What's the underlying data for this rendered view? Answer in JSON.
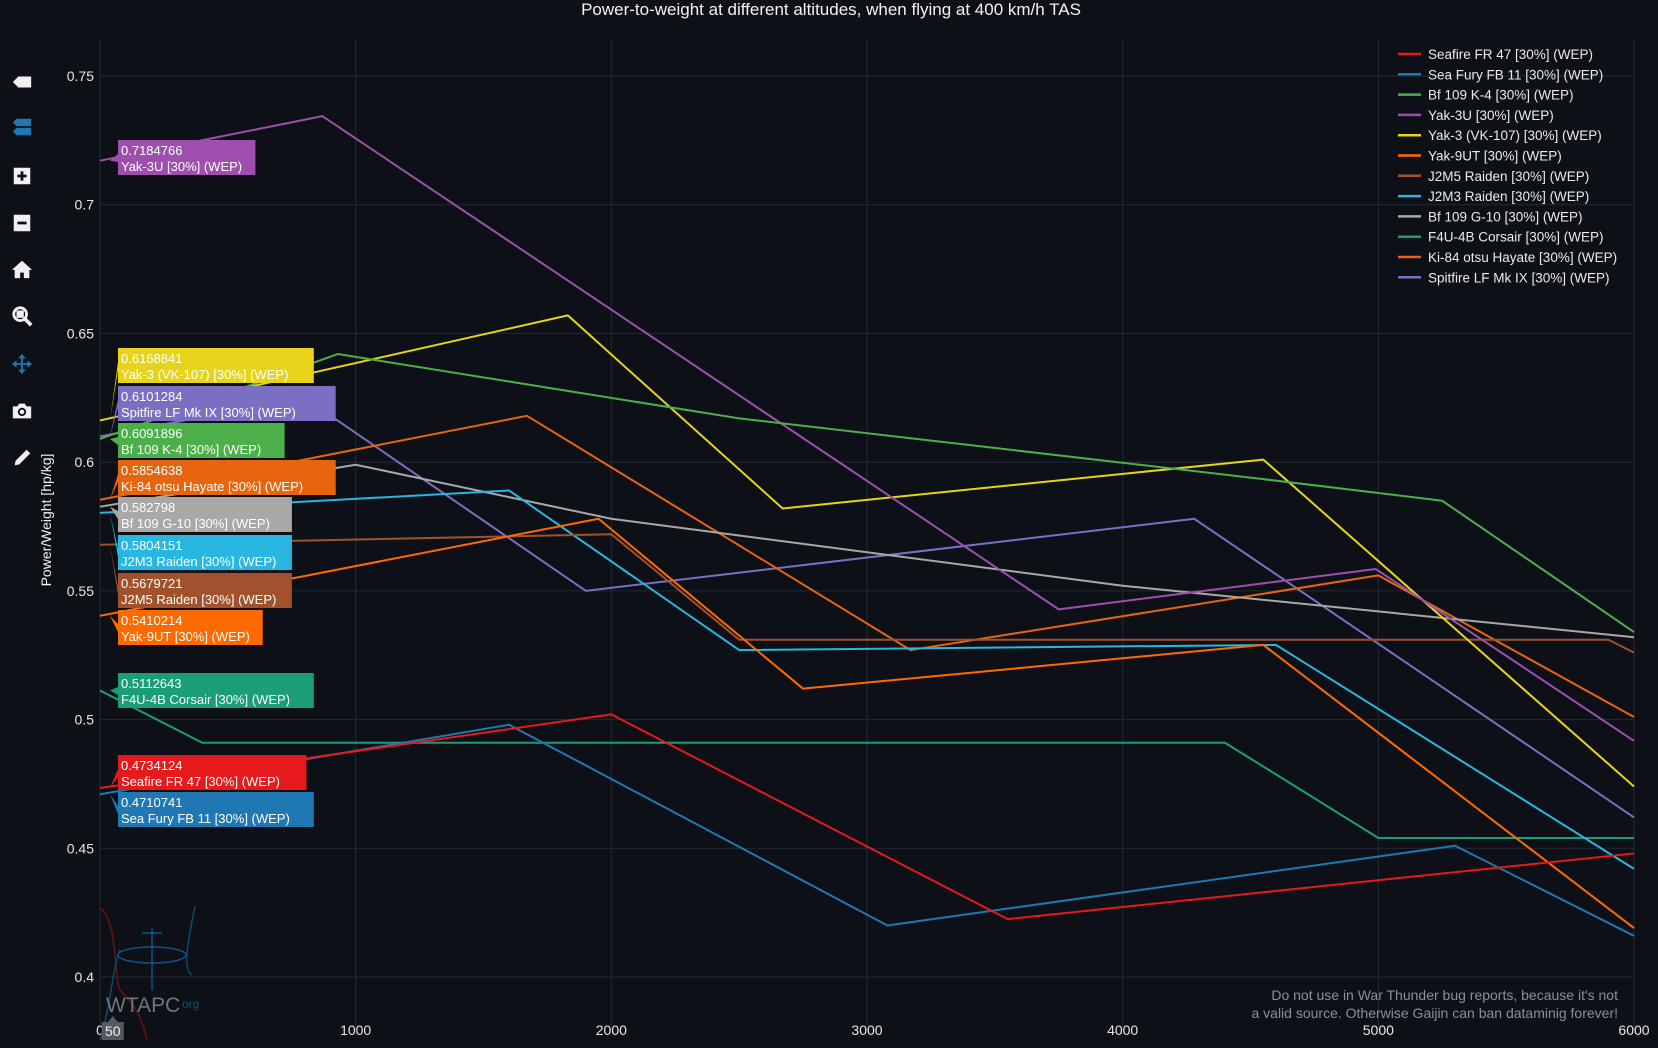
{
  "toolbar": {
    "items": [
      {
        "name": "show-closest-data-button",
        "icon": "tag-icon"
      },
      {
        "name": "compare-data-button",
        "icon": "compare-icon"
      },
      {
        "name": "zoom-in-button",
        "icon": "zoom-in-icon"
      },
      {
        "name": "zoom-out-button",
        "icon": "zoom-out-icon"
      },
      {
        "name": "reset-axes-button",
        "icon": "home-icon"
      },
      {
        "name": "zoom-button",
        "icon": "magnifier-icon"
      },
      {
        "name": "pan-button",
        "icon": "pan-arrows-icon"
      },
      {
        "name": "download-png-button",
        "icon": "camera-icon"
      },
      {
        "name": "draw-button",
        "icon": "pencil-icon"
      }
    ]
  },
  "watermark": {
    "logo_text": "WTAPC",
    "logo_suffix": "org",
    "notice_line1": "Do not use in War Thunder bug reports, because it's not",
    "notice_line2": "a valid source. Otherwise Gaijin can ban dataminig forever!"
  },
  "chart_data": {
    "type": "line",
    "title": "Power-to-weight at different altitudes, when flying at 400 km/h TAS",
    "xlabel": "",
    "ylabel": "Power/Weight [hp/kg]",
    "xlim": [
      0,
      6000
    ],
    "ylim": [
      0.39,
      0.765
    ],
    "xticks": [
      0,
      1000,
      2000,
      3000,
      4000,
      5000,
      6000
    ],
    "xtick_labels": [
      "0",
      "1000",
      "2000",
      "3000",
      "4000",
      "5000",
      "6000"
    ],
    "yticks": [
      0.4,
      0.45,
      0.5,
      0.55,
      0.6,
      0.65,
      0.7,
      0.75
    ],
    "ytick_labels": [
      "0.4",
      "0.45",
      "0.5",
      "0.55",
      "0.6",
      "0.65",
      "0.7",
      "0.75"
    ],
    "grid": true,
    "legend": "top-right",
    "hover": {
      "x": 50,
      "x_label": "50"
    },
    "series": [
      {
        "name": "Seafire FR 47 [30%] (WEP)",
        "color": "#e41a1c",
        "hover_value": "0.4734124",
        "x": [
          0,
          2000,
          3550,
          6000
        ],
        "y": [
          0.4734,
          0.502,
          0.4225,
          0.448
        ]
      },
      {
        "name": "Sea Fury FB 11 [30%] (WEP)",
        "color": "#1f78b4",
        "hover_value": "0.4710741",
        "x": [
          0,
          1600,
          3080,
          5300,
          6000
        ],
        "y": [
          0.471,
          0.498,
          0.42,
          0.451,
          0.416
        ]
      },
      {
        "name": "Bf 109 K-4 [30%] (WEP)",
        "color": "#4daf4a",
        "hover_value": "0.6091896",
        "x": [
          0,
          930,
          2500,
          4500,
          5250,
          6000
        ],
        "y": [
          0.609,
          0.642,
          0.617,
          0.594,
          0.585,
          0.534
        ]
      },
      {
        "name": "Yak-3U [30%] (WEP)",
        "color": "#9e4fae",
        "hover_value": "0.7184766",
        "x": [
          0,
          870,
          3750,
          4990,
          6000
        ],
        "y": [
          0.7171,
          0.7344,
          0.5428,
          0.5585,
          0.4917
        ]
      },
      {
        "name": "Yak-3 (VK-107) [30%] (WEP)",
        "color": "#e6d31a",
        "hover_value": "0.6168841",
        "x": [
          0,
          1830,
          2670,
          4550,
          6000
        ],
        "y": [
          0.6162,
          0.657,
          0.582,
          0.601,
          0.474
        ]
      },
      {
        "name": "Yak-9UT [30%] (WEP)",
        "color": "#ff6a00",
        "hover_value": "0.5410214",
        "x": [
          0,
          1950,
          2750,
          4550,
          6000
        ],
        "y": [
          0.5403,
          0.578,
          0.512,
          0.529,
          0.419
        ]
      },
      {
        "name": "J2M5 Raiden [30%] (WEP)",
        "color": "#a0522d",
        "hover_value": "0.5679721",
        "x": [
          0,
          2000,
          2500,
          5900,
          6000
        ],
        "y": [
          0.5679,
          0.572,
          0.531,
          0.531,
          0.526
        ]
      },
      {
        "name": "J2M3 Raiden [30%] (WEP)",
        "color": "#29b6e0",
        "hover_value": "0.5804151",
        "x": [
          0,
          1600,
          2500,
          4600,
          6000
        ],
        "y": [
          0.5803,
          0.589,
          0.527,
          0.529,
          0.442
        ]
      },
      {
        "name": "Bf 109 G-10 [30%] (WEP)",
        "color": "#a8a8a8",
        "hover_value": "0.582798",
        "x": [
          0,
          1000,
          2000,
          4000,
          6000
        ],
        "y": [
          0.5827,
          0.599,
          0.578,
          0.552,
          0.532
        ]
      },
      {
        "name": "F4U-4B Corsair [30%] (WEP)",
        "color": "#1b9e77",
        "hover_value": "0.5112643",
        "x": [
          0,
          400,
          4400,
          5000,
          6000
        ],
        "y": [
          0.5113,
          0.491,
          0.491,
          0.454,
          0.454
        ]
      },
      {
        "name": "Ki-84 otsu Hayate [30%] (WEP)",
        "color": "#e8650f",
        "hover_value": "0.5854638",
        "x": [
          0,
          1670,
          3170,
          5000,
          6000
        ],
        "y": [
          0.5854,
          0.618,
          0.527,
          0.556,
          0.501
        ]
      },
      {
        "name": "Spitfire LF Mk IX [30%] (WEP)",
        "color": "#7b6fc4",
        "hover_value": "0.6101284",
        "x": [
          0,
          800,
          1900,
          4280,
          6000
        ],
        "y": [
          0.61,
          0.625,
          0.55,
          0.578,
          0.462
        ]
      }
    ]
  }
}
